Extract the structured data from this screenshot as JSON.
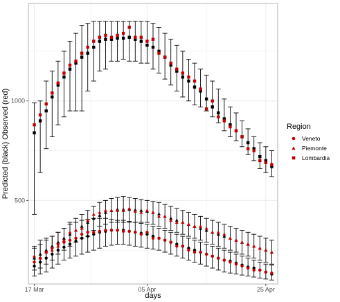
{
  "colors": {
    "predicted": "#000000",
    "observed": "#c00000",
    "grid": "#ebebeb",
    "panel_border": "#b3b3b3"
  },
  "chart_data": {
    "type": "scatter",
    "xlabel": "days",
    "ylabel": "Predicted (black) Observed (red)",
    "x_ticks": [
      {
        "value": "2020-03-17",
        "label": "17 Mar"
      },
      {
        "value": "2020-04-05",
        "label": "05 Apr"
      },
      {
        "value": "2020-04-25",
        "label": "25 Apr"
      }
    ],
    "y_ticks": [
      500,
      1000
    ],
    "xlim": [
      "2020-03-16",
      "2020-04-27"
    ],
    "ylim": [
      80,
      1490
    ],
    "grid": true,
    "legend": {
      "title": "Region",
      "position": "right",
      "entries": [
        {
          "name": "Veneto",
          "shape": "circle"
        },
        {
          "name": "Piemonte",
          "shape": "triangle"
        },
        {
          "name": "Lombardia",
          "shape": "square"
        }
      ]
    },
    "dates": [
      "2020-03-17",
      "2020-03-18",
      "2020-03-19",
      "2020-03-20",
      "2020-03-21",
      "2020-03-22",
      "2020-03-23",
      "2020-03-24",
      "2020-03-25",
      "2020-03-26",
      "2020-03-27",
      "2020-03-28",
      "2020-03-29",
      "2020-03-30",
      "2020-03-31",
      "2020-04-01",
      "2020-04-02",
      "2020-04-03",
      "2020-04-04",
      "2020-04-05",
      "2020-04-06",
      "2020-04-07",
      "2020-04-08",
      "2020-04-09",
      "2020-04-10",
      "2020-04-11",
      "2020-04-12",
      "2020-04-13",
      "2020-04-14",
      "2020-04-15",
      "2020-04-16",
      "2020-04-17",
      "2020-04-18",
      "2020-04-19",
      "2020-04-20",
      "2020-04-21",
      "2020-04-22",
      "2020-04-23",
      "2020-04-24",
      "2020-04-25",
      "2020-04-26"
    ],
    "series": [
      {
        "name": "Lombardia",
        "shape": "square",
        "predicted": [
          840,
          900,
          950,
          1020,
          1080,
          1120,
          1160,
          1190,
          1220,
          1240,
          1270,
          1300,
          1310,
          1310,
          1315,
          1315,
          1320,
          1310,
          1300,
          1280,
          1270,
          1250,
          1220,
          1180,
          1150,
          1120,
          1100,
          1070,
          1050,
          1010,
          970,
          940,
          910,
          880,
          850,
          820,
          790,
          760,
          720,
          700,
          670
        ],
        "observed": [
          880,
          930,
          985,
          1040,
          1090,
          1140,
          1180,
          1200,
          1240,
          1270,
          1300,
          1320,
          1330,
          1320,
          1330,
          1340,
          1370,
          1320,
          1320,
          1300,
          1310,
          1240,
          1220,
          1190,
          1160,
          1140,
          1120,
          1100,
          1060,
          960,
          1000,
          920,
          900,
          870,
          850,
          820,
          760,
          750,
          700,
          690,
          680
        ],
        "lower": [
          430,
          640,
          760,
          820,
          880,
          920,
          950,
          950,
          950,
          1050,
          1100,
          1150,
          1160,
          1200,
          1200,
          1210,
          1200,
          1200,
          1190,
          1190,
          1160,
          1140,
          1110,
          1080,
          1050,
          1020,
          1000,
          980,
          970,
          950,
          920,
          890,
          850,
          820,
          800,
          770,
          730,
          700,
          660,
          640,
          620
        ],
        "upper": [
          990,
          1000,
          1100,
          1150,
          1200,
          1250,
          1300,
          1340,
          1380,
          1390,
          1400,
          1400,
          1400,
          1400,
          1400,
          1400,
          1400,
          1400,
          1400,
          1400,
          1390,
          1370,
          1340,
          1310,
          1280,
          1250,
          1210,
          1190,
          1160,
          1130,
          1100,
          1060,
          1010,
          970,
          940,
          900,
          860,
          820,
          790,
          770,
          750
        ]
      },
      {
        "name": "Piemonte",
        "shape": "triangle",
        "predicted": [
          210,
          230,
          250,
          270,
          290,
          310,
          330,
          350,
          370,
          390,
          410,
          425,
          440,
          450,
          455,
          455,
          455,
          452,
          450,
          445,
          440,
          432,
          420,
          410,
          400,
          390,
          380,
          370,
          360,
          350,
          340,
          330,
          320,
          310,
          300,
          290,
          280,
          270,
          260,
          250,
          240
        ],
        "observed": [
          220,
          210,
          240,
          250,
          270,
          300,
          340,
          350,
          360,
          400,
          430,
          440,
          450,
          450,
          450,
          450,
          460,
          445,
          440,
          450,
          440,
          420,
          420,
          400,
          390,
          390,
          380,
          370,
          370,
          360,
          340,
          340,
          330,
          310,
          300,
          290,
          280,
          270,
          260,
          250,
          240
        ],
        "lower": [
          150,
          160,
          180,
          200,
          230,
          250,
          270,
          290,
          310,
          320,
          350,
          370,
          380,
          390,
          390,
          390,
          390,
          390,
          390,
          390,
          380,
          370,
          360,
          350,
          340,
          330,
          320,
          310,
          300,
          290,
          280,
          270,
          260,
          250,
          240,
          230,
          220,
          210,
          200,
          190,
          180
        ],
        "upper": [
          270,
          300,
          310,
          320,
          340,
          360,
          390,
          410,
          430,
          450,
          470,
          490,
          500,
          510,
          515,
          520,
          515,
          510,
          505,
          500,
          495,
          490,
          480,
          470,
          460,
          450,
          440,
          430,
          420,
          410,
          400,
          390,
          380,
          370,
          360,
          350,
          340,
          330,
          320,
          310,
          300
        ]
      },
      {
        "name": "Veneto",
        "shape": "circle",
        "predicted": [
          170,
          190,
          210,
          230,
          250,
          265,
          280,
          295,
          310,
          320,
          330,
          340,
          345,
          350,
          350,
          350,
          345,
          340,
          335,
          330,
          320,
          310,
          300,
          290,
          280,
          270,
          260,
          250,
          240,
          230,
          220,
          210,
          200,
          195,
          185,
          175,
          165,
          160,
          150,
          140,
          130
        ],
        "observed": [
          190,
          210,
          240,
          260,
          280,
          290,
          300,
          310,
          330,
          340,
          340,
          345,
          350,
          350,
          350,
          345,
          345,
          340,
          330,
          340,
          310,
          310,
          300,
          290,
          270,
          270,
          250,
          240,
          240,
          230,
          220,
          210,
          200,
          190,
          180,
          170,
          160,
          150,
          150,
          140,
          135
        ],
        "lower": [
          120,
          130,
          140,
          160,
          180,
          200,
          210,
          220,
          230,
          240,
          250,
          260,
          270,
          275,
          280,
          280,
          275,
          270,
          265,
          260,
          255,
          250,
          240,
          230,
          220,
          210,
          200,
          190,
          180,
          170,
          160,
          150,
          140,
          135,
          130,
          125,
          120,
          115,
          110,
          105,
          100
        ],
        "upper": [
          260,
          280,
          300,
          320,
          340,
          360,
          380,
          390,
          400,
          405,
          410,
          410,
          410,
          405,
          400,
          400,
          395,
          390,
          385,
          380,
          370,
          360,
          350,
          340,
          330,
          320,
          310,
          300,
          290,
          280,
          270,
          260,
          250,
          240,
          230,
          220,
          210,
          200,
          190,
          180,
          175
        ]
      }
    ]
  }
}
